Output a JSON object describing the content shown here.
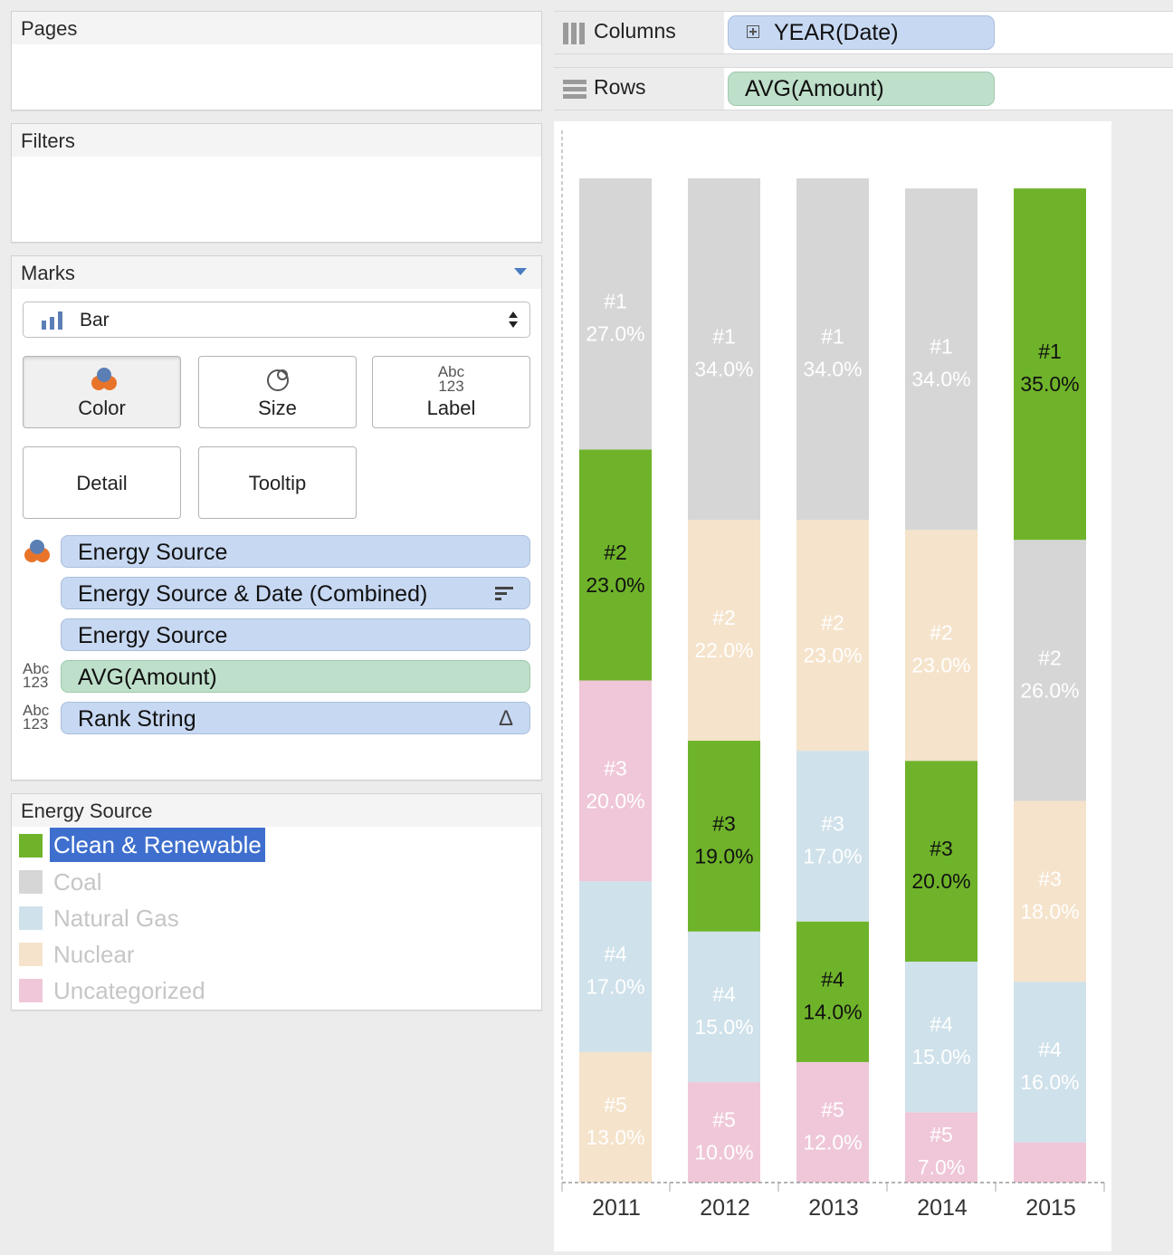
{
  "pages": {
    "title": "Pages"
  },
  "filters": {
    "title": "Filters"
  },
  "marks": {
    "title": "Marks",
    "mark_type": "Bar",
    "buttons": {
      "color": "Color",
      "size": "Size",
      "label": "Label",
      "detail": "Detail",
      "tooltip": "Tooltip",
      "abc": "Abc",
      "num": "123"
    },
    "pills": [
      {
        "label": "Energy Source",
        "kind": "color"
      },
      {
        "label": "Energy Source & Date (Combined)",
        "kind": "sort"
      },
      {
        "label": "Energy Source",
        "kind": "detail"
      },
      {
        "label": "AVG(Amount)",
        "kind": "label"
      },
      {
        "label": "Rank String",
        "kind": "label"
      }
    ]
  },
  "shelves": {
    "columns_label": "Columns",
    "columns_pill": "YEAR(Date)",
    "rows_label": "Rows",
    "rows_pill": "AVG(Amount)"
  },
  "legend": {
    "title": "Energy Source",
    "items": [
      {
        "label": "Clean & Renewable",
        "color": "#6fb32a",
        "selected": true
      },
      {
        "label": "Coal",
        "color": "#d6d6d6",
        "selected": false
      },
      {
        "label": "Natural Gas",
        "color": "#cfe1ea",
        "selected": false
      },
      {
        "label": "Nuclear",
        "color": "#f5e3cb",
        "selected": false
      },
      {
        "label": "Uncategorized",
        "color": "#efc7d9",
        "selected": false
      }
    ]
  },
  "chart_data": {
    "type": "bar",
    "stacked": true,
    "categories": [
      "2011",
      "2012",
      "2013",
      "2014",
      "2015"
    ],
    "title": "",
    "xlabel": "",
    "ylabel": "",
    "ylim": [
      0,
      100
    ],
    "colors": {
      "Clean & Renewable": "#6fb32a",
      "Coal": "#d6d6d6",
      "Natural Gas": "#cfe1ea",
      "Nuclear": "#f5e3cb",
      "Uncategorized": "#efc7d9"
    },
    "stacks": [
      [
        {
          "source": "Coal",
          "rank": "#1",
          "value": 27.0,
          "label": "27.0%"
        },
        {
          "source": "Clean & Renewable",
          "rank": "#2",
          "value": 23.0,
          "label": "23.0%"
        },
        {
          "source": "Uncategorized",
          "rank": "#3",
          "value": 20.0,
          "label": "20.0%"
        },
        {
          "source": "Natural Gas",
          "rank": "#4",
          "value": 17.0,
          "label": "17.0%"
        },
        {
          "source": "Nuclear",
          "rank": "#5",
          "value": 13.0,
          "label": "13.0%"
        }
      ],
      [
        {
          "source": "Coal",
          "rank": "#1",
          "value": 34.0,
          "label": "34.0%"
        },
        {
          "source": "Nuclear",
          "rank": "#2",
          "value": 22.0,
          "label": "22.0%"
        },
        {
          "source": "Clean & Renewable",
          "rank": "#3",
          "value": 19.0,
          "label": "19.0%"
        },
        {
          "source": "Natural Gas",
          "rank": "#4",
          "value": 15.0,
          "label": "15.0%"
        },
        {
          "source": "Uncategorized",
          "rank": "#5",
          "value": 10.0,
          "label": "10.0%"
        }
      ],
      [
        {
          "source": "Coal",
          "rank": "#1",
          "value": 34.0,
          "label": "34.0%"
        },
        {
          "source": "Nuclear",
          "rank": "#2",
          "value": 23.0,
          "label": "23.0%"
        },
        {
          "source": "Natural Gas",
          "rank": "#3",
          "value": 17.0,
          "label": "17.0%"
        },
        {
          "source": "Clean & Renewable",
          "rank": "#4",
          "value": 14.0,
          "label": "14.0%"
        },
        {
          "source": "Uncategorized",
          "rank": "#5",
          "value": 12.0,
          "label": "12.0%"
        }
      ],
      [
        {
          "source": "Coal",
          "rank": "#1",
          "value": 34.0,
          "label": "34.0%"
        },
        {
          "source": "Nuclear",
          "rank": "#2",
          "value": 23.0,
          "label": "23.0%"
        },
        {
          "source": "Clean & Renewable",
          "rank": "#3",
          "value": 20.0,
          "label": "20.0%"
        },
        {
          "source": "Natural Gas",
          "rank": "#4",
          "value": 15.0,
          "label": "15.0%"
        },
        {
          "source": "Uncategorized",
          "rank": "#5",
          "value": 7.0,
          "label": "7.0%"
        }
      ],
      [
        {
          "source": "Clean & Renewable",
          "rank": "#1",
          "value": 35.0,
          "label": "35.0%"
        },
        {
          "source": "Coal",
          "rank": "#2",
          "value": 26.0,
          "label": "26.0%"
        },
        {
          "source": "Nuclear",
          "rank": "#3",
          "value": 18.0,
          "label": "18.0%"
        },
        {
          "source": "Natural Gas",
          "rank": "#4",
          "value": 16.0,
          "label": "16.0%"
        },
        {
          "source": "Uncategorized",
          "rank": "",
          "value": 4.0,
          "label": ""
        }
      ]
    ],
    "highlighted_series": "Clean & Renewable"
  }
}
